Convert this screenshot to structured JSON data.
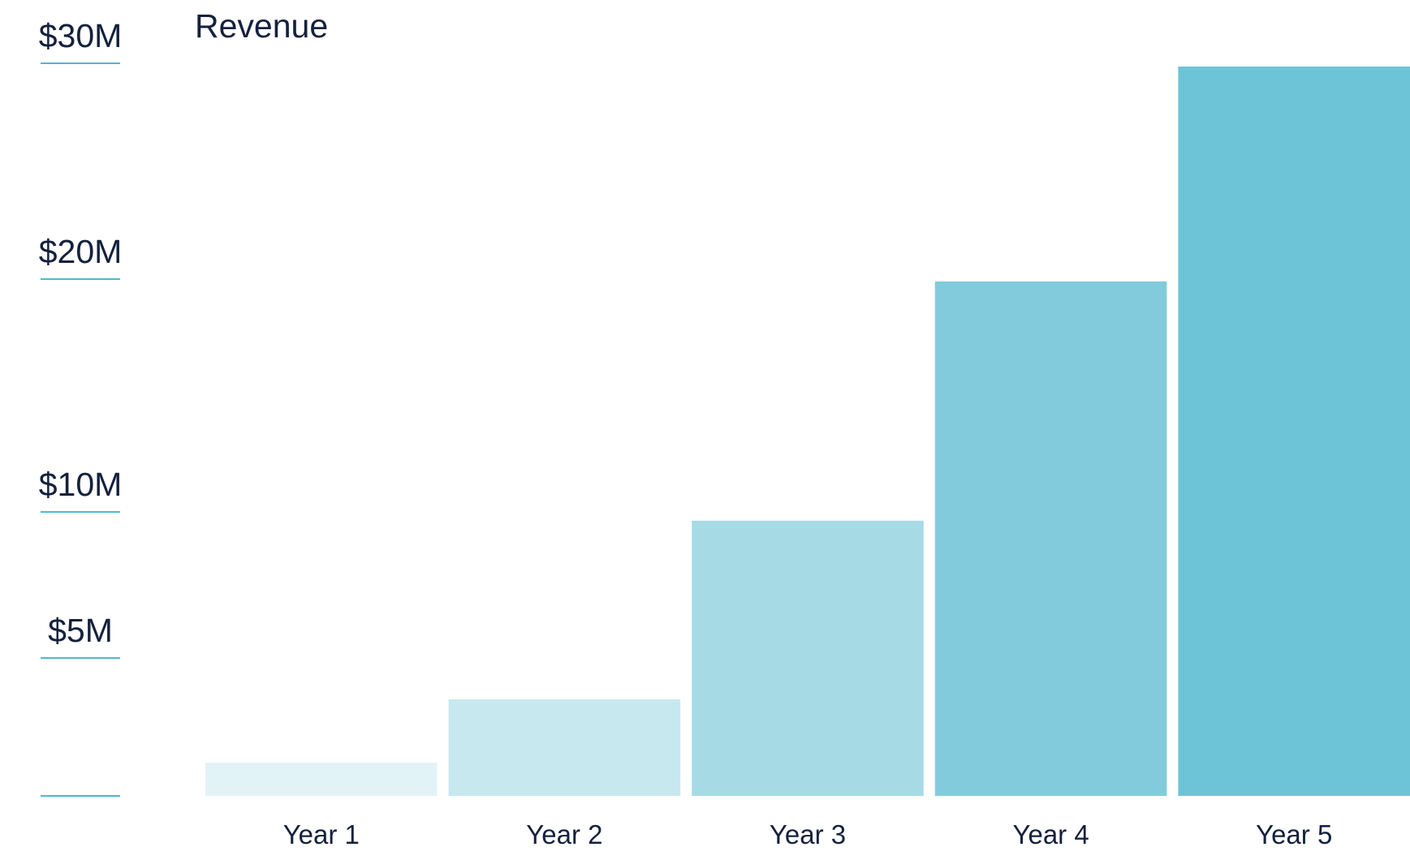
{
  "chart_data": {
    "type": "bar",
    "title": "Revenue",
    "xlabel": "",
    "ylabel": "",
    "categories": [
      "Year 1",
      "Year 2",
      "Year 3",
      "Year 4",
      "Year 5"
    ],
    "values": [
      1.2,
      3.5,
      9.7,
      19.9,
      33.6
    ],
    "unit": "$M",
    "y_ticks": [
      {
        "value": 0,
        "label": ""
      },
      {
        "value": 5,
        "label": "$5M"
      },
      {
        "value": 10,
        "label": "$10M"
      },
      {
        "value": 20,
        "label": "$20M"
      },
      {
        "value": 30,
        "label": "$30M"
      }
    ],
    "ylim": [
      0,
      33.6
    ],
    "grid": false,
    "legend": "none",
    "colors": {
      "text": "#14213d",
      "tick_line": "#4fb8d0",
      "bars": [
        "#e2f3f7",
        "#c8e8ef",
        "#a6dbe6",
        "#82cbdc",
        "#6ec4d7"
      ]
    }
  }
}
